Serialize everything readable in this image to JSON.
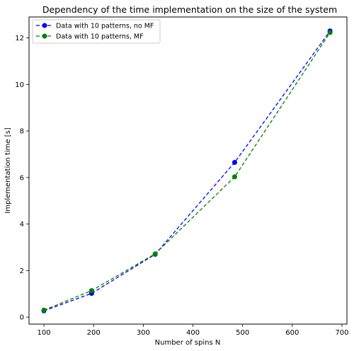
{
  "chart_data": {
    "type": "line",
    "title": "Dependency of the time implementation on the size of the system",
    "xlabel": "Number of spins N",
    "ylabel": "Implementation time [s]",
    "xlim": [
      70,
      710
    ],
    "ylim": [
      -0.3,
      12.9
    ],
    "xticks": [
      100,
      200,
      300,
      400,
      500,
      600,
      700
    ],
    "yticks": [
      0,
      2,
      4,
      6,
      8,
      10,
      12
    ],
    "grid": false,
    "legend_position": "top-left",
    "series": [
      {
        "name": "Data with 10 patterns, no MF",
        "color": "#0000ff",
        "line_style": "dashed",
        "marker": "circle",
        "x": [
          100,
          196,
          324,
          484,
          676
        ],
        "y": [
          0.27,
          1.02,
          2.7,
          6.65,
          12.3
        ]
      },
      {
        "name": "Data with 10 patterns, MF",
        "color": "#008000",
        "line_style": "dashed",
        "marker": "circle",
        "x": [
          100,
          196,
          324,
          484,
          676
        ],
        "y": [
          0.3,
          1.14,
          2.72,
          6.03,
          12.23
        ]
      }
    ]
  }
}
